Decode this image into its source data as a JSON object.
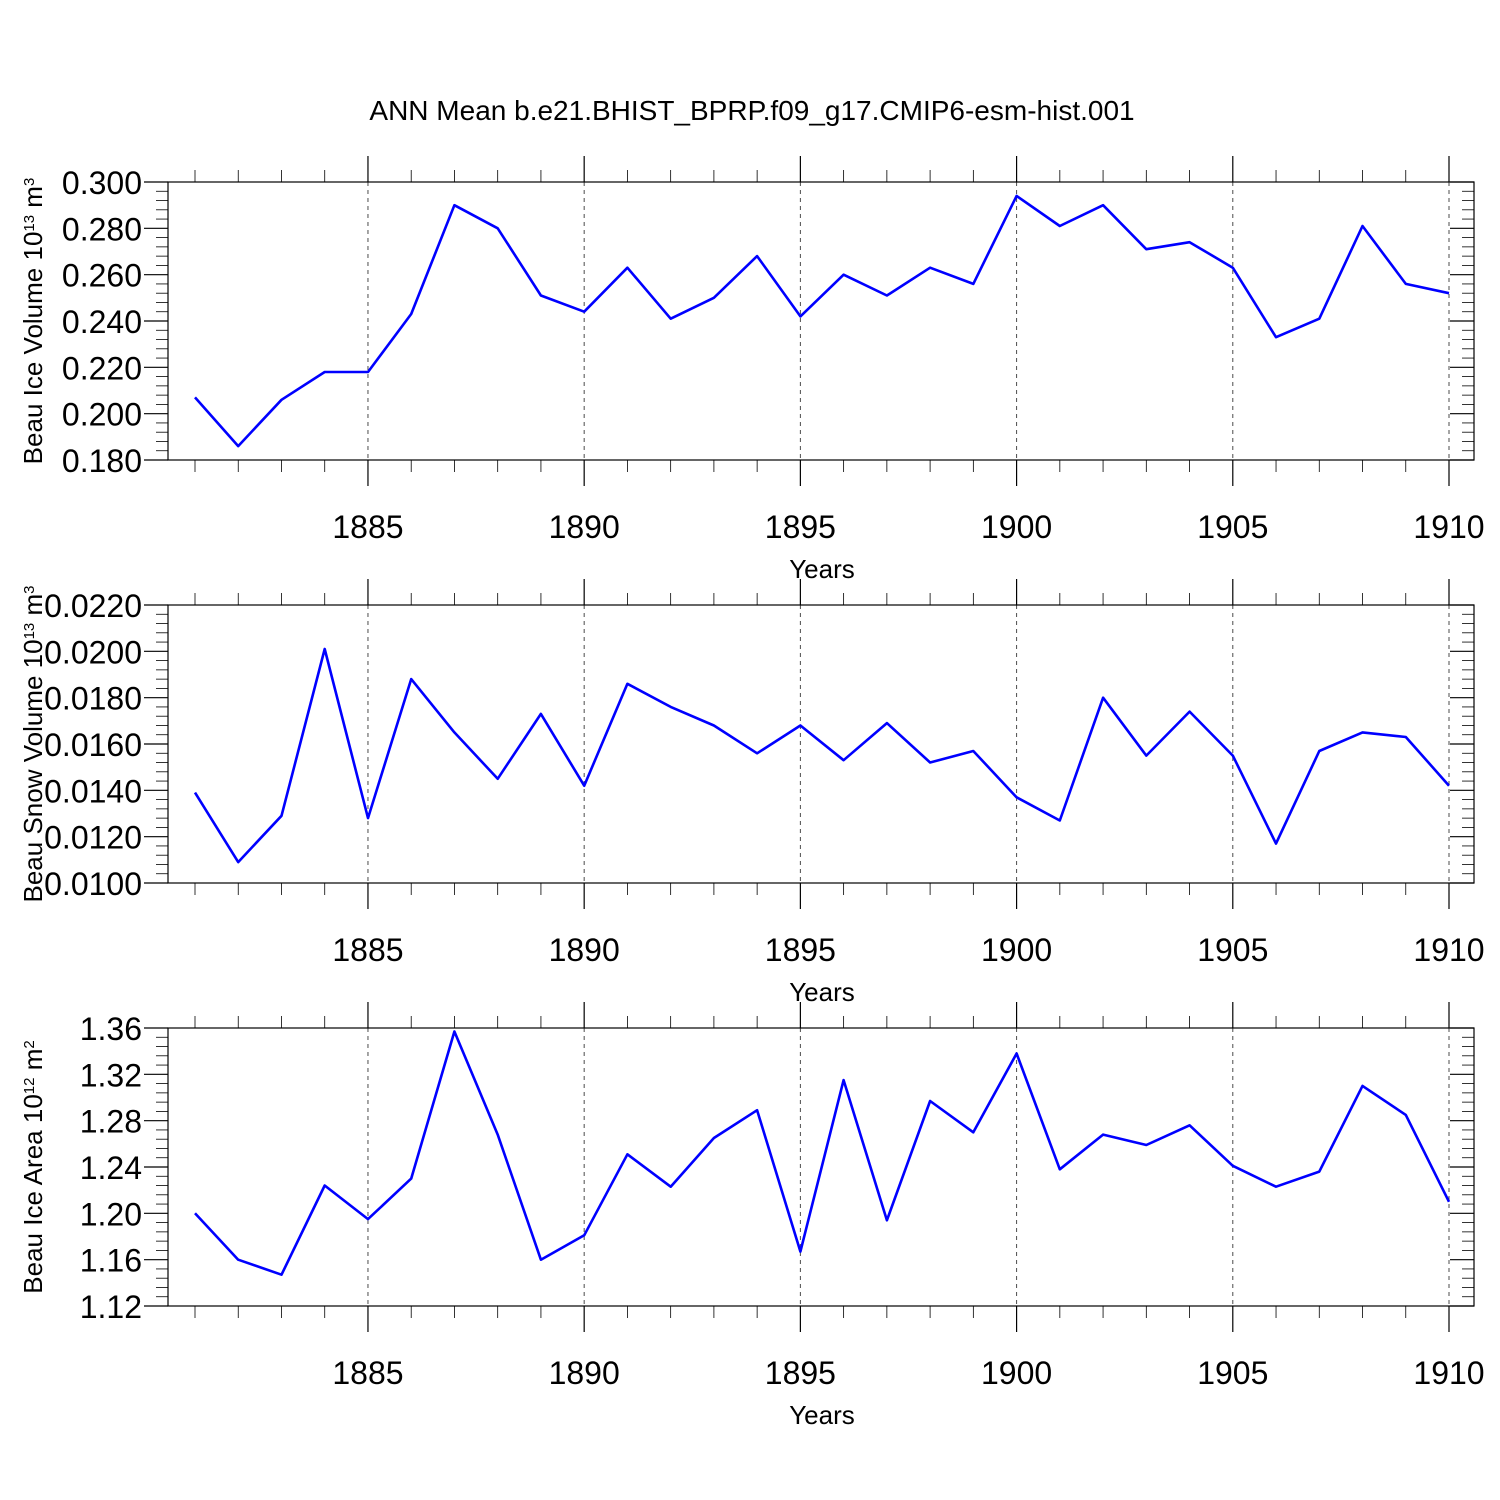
{
  "title": "ANN Mean b.e21.BHIST_BPRP.f09_g17.CMIP6-esm-hist.001",
  "colors": {
    "series": "#0000ff",
    "axes": "#000000",
    "background": "#ffffff"
  },
  "chart_data": [
    {
      "type": "line",
      "xlabel": "Years",
      "ylabel_main": "Beau Ice Volume 10",
      "ylabel_exp": "13",
      "ylabel_unit": " m",
      "ylabel_unit_exp": "3",
      "xlim": [
        1881,
        1910
      ],
      "ylim": [
        0.18,
        0.3
      ],
      "xticks": [
        1885,
        1890,
        1895,
        1900,
        1905,
        1910
      ],
      "yticks": [
        0.18,
        0.2,
        0.22,
        0.24,
        0.26,
        0.28,
        0.3
      ],
      "ytick_labels": [
        "0.180",
        "0.200",
        "0.220",
        "0.240",
        "0.260",
        "0.280",
        "0.300"
      ],
      "grid": "vertical dashed at major x ticks",
      "x": [
        1881,
        1882,
        1883,
        1884,
        1885,
        1886,
        1887,
        1888,
        1889,
        1890,
        1891,
        1892,
        1893,
        1894,
        1895,
        1896,
        1897,
        1898,
        1899,
        1900,
        1901,
        1902,
        1903,
        1904,
        1905,
        1906,
        1907,
        1908,
        1909,
        1910
      ],
      "values": [
        0.207,
        0.186,
        0.206,
        0.218,
        0.218,
        0.243,
        0.29,
        0.28,
        0.251,
        0.244,
        0.263,
        0.241,
        0.25,
        0.268,
        0.242,
        0.26,
        0.251,
        0.263,
        0.256,
        0.294,
        0.281,
        0.29,
        0.271,
        0.274,
        0.263,
        0.233,
        0.241,
        0.281,
        0.256,
        0.252
      ]
    },
    {
      "type": "line",
      "xlabel": "Years",
      "ylabel_main": "Beau Snow Volume 10",
      "ylabel_exp": "13",
      "ylabel_unit": " m",
      "ylabel_unit_exp": "3",
      "xlim": [
        1881,
        1910
      ],
      "ylim": [
        0.01,
        0.022
      ],
      "xticks": [
        1885,
        1890,
        1895,
        1900,
        1905,
        1910
      ],
      "yticks": [
        0.01,
        0.012,
        0.014,
        0.016,
        0.018,
        0.02,
        0.022
      ],
      "ytick_labels": [
        "0.0100",
        "0.0120",
        "0.0140",
        "0.0160",
        "0.0180",
        "0.0200",
        "0.0220"
      ],
      "grid": "vertical dashed at major x ticks",
      "x": [
        1881,
        1882,
        1883,
        1884,
        1885,
        1886,
        1887,
        1888,
        1889,
        1890,
        1891,
        1892,
        1893,
        1894,
        1895,
        1896,
        1897,
        1898,
        1899,
        1900,
        1901,
        1902,
        1903,
        1904,
        1905,
        1906,
        1907,
        1908,
        1909,
        1910
      ],
      "values": [
        0.0139,
        0.0109,
        0.0129,
        0.0201,
        0.0128,
        0.0188,
        0.0165,
        0.0145,
        0.0173,
        0.0142,
        0.0186,
        0.0176,
        0.0168,
        0.0156,
        0.0168,
        0.0153,
        0.0169,
        0.0152,
        0.0157,
        0.0137,
        0.0127,
        0.018,
        0.0155,
        0.0174,
        0.0155,
        0.0117,
        0.0157,
        0.0165,
        0.0163,
        0.0142
      ]
    },
    {
      "type": "line",
      "xlabel": "Years",
      "ylabel_main": "Beau Ice Area 10",
      "ylabel_exp": "12",
      "ylabel_unit": " m",
      "ylabel_unit_exp": "2",
      "xlim": [
        1881,
        1910
      ],
      "ylim": [
        1.12,
        1.36
      ],
      "xticks": [
        1885,
        1890,
        1895,
        1900,
        1905,
        1910
      ],
      "yticks": [
        1.12,
        1.16,
        1.2,
        1.24,
        1.28,
        1.32,
        1.36
      ],
      "ytick_labels": [
        "1.12",
        "1.16",
        "1.20",
        "1.24",
        "1.28",
        "1.32",
        "1.36"
      ],
      "grid": "vertical dashed at major x ticks",
      "x": [
        1881,
        1882,
        1883,
        1884,
        1885,
        1886,
        1887,
        1888,
        1889,
        1890,
        1891,
        1892,
        1893,
        1894,
        1895,
        1896,
        1897,
        1898,
        1899,
        1900,
        1901,
        1902,
        1903,
        1904,
        1905,
        1906,
        1907,
        1908,
        1909,
        1910
      ],
      "values": [
        1.2,
        1.16,
        1.147,
        1.224,
        1.195,
        1.23,
        1.357,
        1.268,
        1.16,
        1.181,
        1.251,
        1.223,
        1.265,
        1.289,
        1.167,
        1.315,
        1.194,
        1.297,
        1.27,
        1.338,
        1.238,
        1.268,
        1.259,
        1.276,
        1.241,
        1.223,
        1.236,
        1.31,
        1.285,
        1.21
      ]
    }
  ]
}
